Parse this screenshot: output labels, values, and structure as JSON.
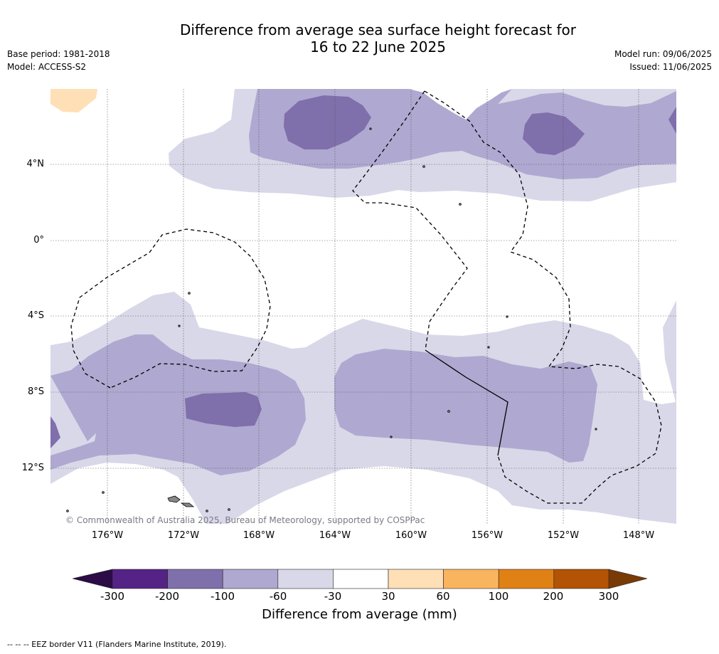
{
  "title_line1": "Difference from average sea surface height forecast for",
  "title_line2": "16 to 22 June 2025",
  "base_period": "Base period: 1981-2018",
  "model": "Model: ACCESS-S2",
  "model_run": "Model run: 09/06/2025",
  "issued": "Issued: 11/06/2025",
  "lat_labels": [
    "4°N",
    "0°",
    "4°S",
    "8°S",
    "12°S"
  ],
  "lon_labels": [
    "176°W",
    "172°W",
    "168°W",
    "164°W",
    "160°W",
    "156°W",
    "152°W",
    "148°W"
  ],
  "copyright": "© Commonwealth of Australia 2025, Bureau of Meteorology, supported by COSPPac",
  "colorbar": {
    "title": "Difference from average (mm)",
    "ticks": [
      "-300",
      "-200",
      "-100",
      "-60",
      "-30",
      "30",
      "60",
      "100",
      "200",
      "300"
    ],
    "colors": {
      "below_-300": "#2c0b47",
      "-300_-200": "#552386",
      "-200_-100": "#7f6fab",
      "-100_-60": "#afa8d0",
      "-60_-30": "#d8d8e9",
      "-30_30": "#ffffff",
      "30_60": "#ffdfb5",
      "60_100": "#f9b45f",
      "100_200": "#e08116",
      "200_300": "#b25306",
      "above_300": "#7a3a06"
    }
  },
  "footnote": "--  --  -- EEZ border V11 (Flanders Marine Institute, 2019)."
}
